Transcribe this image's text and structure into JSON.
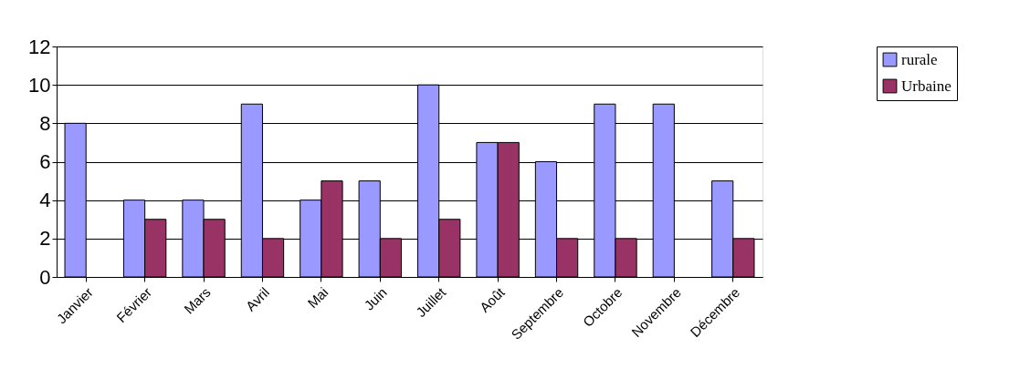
{
  "chart_data": {
    "type": "bar",
    "categories": [
      "Janvier",
      "Février",
      "Mars",
      "Avril",
      "Mai",
      "Juin",
      "Juillet",
      "Août",
      "Septembre",
      "Octobre",
      "Novembre",
      "Décembre"
    ],
    "series": [
      {
        "name": "rurale",
        "color": "#9999ff",
        "values": [
          8,
          4,
          4,
          9,
          4,
          5,
          10,
          7,
          6,
          9,
          9,
          5
        ]
      },
      {
        "name": "Urbaine",
        "color": "#993366",
        "values": [
          null,
          3,
          3,
          2,
          5,
          2,
          3,
          7,
          2,
          2,
          null,
          2
        ]
      }
    ],
    "ylim": [
      0,
      12
    ],
    "yticks": [
      0,
      2,
      4,
      6,
      8,
      10,
      12
    ],
    "grid": "y",
    "legend": "right"
  }
}
